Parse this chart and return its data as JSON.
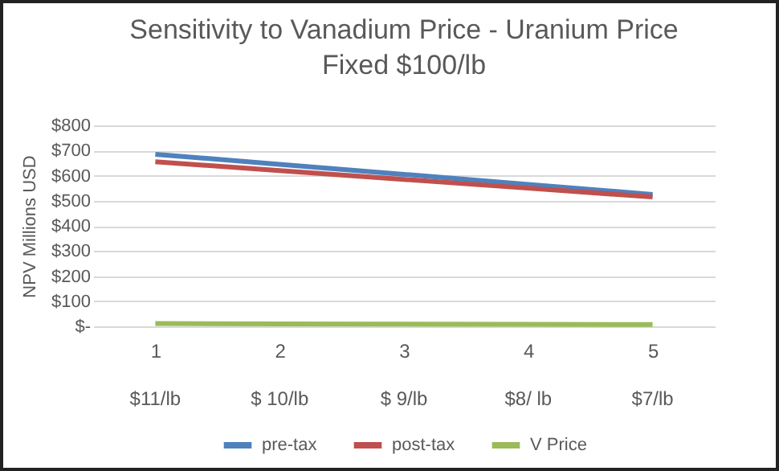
{
  "chart_data": {
    "type": "line",
    "title": "Sensitivity to Vanadium Price - Uranium Price Fixed $100/lb",
    "ylabel": "NPV Millions USD",
    "categories": [
      "1",
      "2",
      "3",
      "4",
      "5"
    ],
    "annotations": [
      "$11/lb",
      "$ 10/lb",
      "$ 9/lb",
      "$8/ lb",
      "$7/lb"
    ],
    "series": [
      {
        "name": "pre-tax",
        "color": "#4f81bd",
        "values": [
          685,
          645,
          605,
          565,
          525
        ]
      },
      {
        "name": "post-tax",
        "color": "#c0504d",
        "values": [
          655,
          620,
          585,
          550,
          515
        ]
      },
      {
        "name": "V Price",
        "color": "#9bbb59",
        "values": [
          11,
          10,
          9,
          8,
          7
        ]
      }
    ],
    "ylim": [
      0,
      800
    ],
    "yticks": [
      {
        "value": 0,
        "label": "$-"
      },
      {
        "value": 100,
        "label": "$100"
      },
      {
        "value": 200,
        "label": "$200"
      },
      {
        "value": 300,
        "label": "$300"
      },
      {
        "value": 400,
        "label": "$400"
      },
      {
        "value": 500,
        "label": "$500"
      },
      {
        "value": 600,
        "label": "$600"
      },
      {
        "value": 700,
        "label": "$700"
      },
      {
        "value": 800,
        "label": "$800"
      }
    ],
    "grid": "y",
    "legend": "bottom",
    "line_style": "solid"
  }
}
